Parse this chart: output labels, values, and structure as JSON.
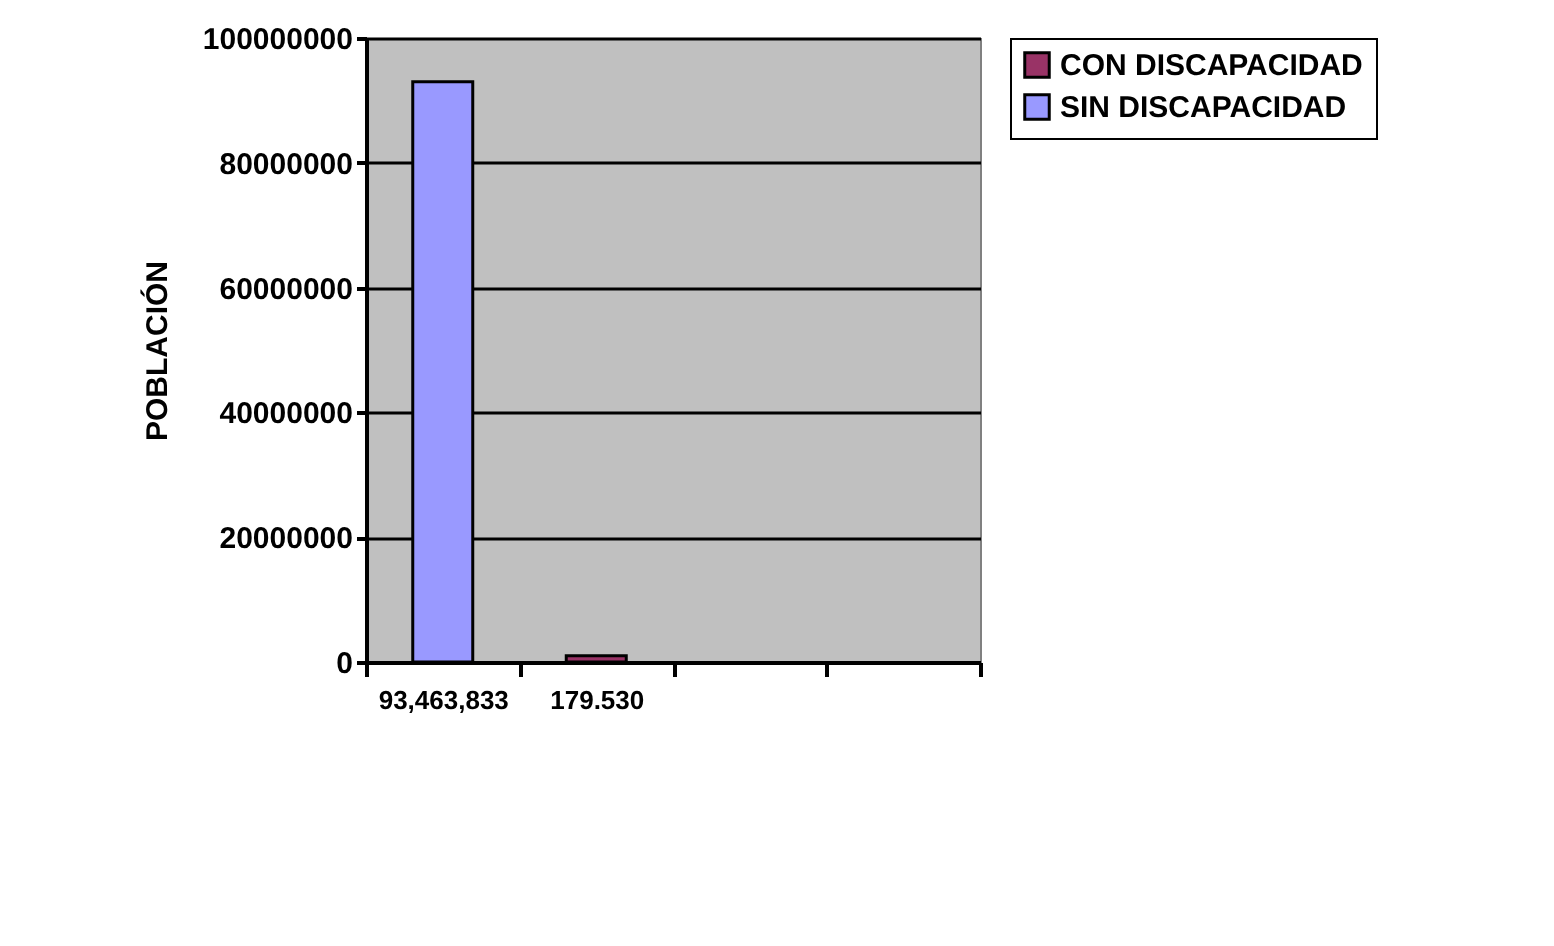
{
  "chart_data": {
    "type": "bar",
    "ylabel": "POBLACIÓN",
    "categories": [
      "93,463,833",
      "179.530",
      null,
      null
    ],
    "series": [
      {
        "name": "CON DISCAPACIDAD",
        "color": "#993366",
        "values": [
          null,
          1000000,
          null,
          null
        ]
      },
      {
        "name": "SIN DISCAPACIDAD",
        "color": "#9999ff",
        "values": [
          93000000,
          null,
          null,
          null
        ]
      }
    ],
    "ylim": [
      0,
      100000000
    ],
    "yticks": [
      0,
      20000000,
      40000000,
      60000000,
      80000000,
      100000000
    ],
    "grid": "y",
    "legend": "right"
  }
}
